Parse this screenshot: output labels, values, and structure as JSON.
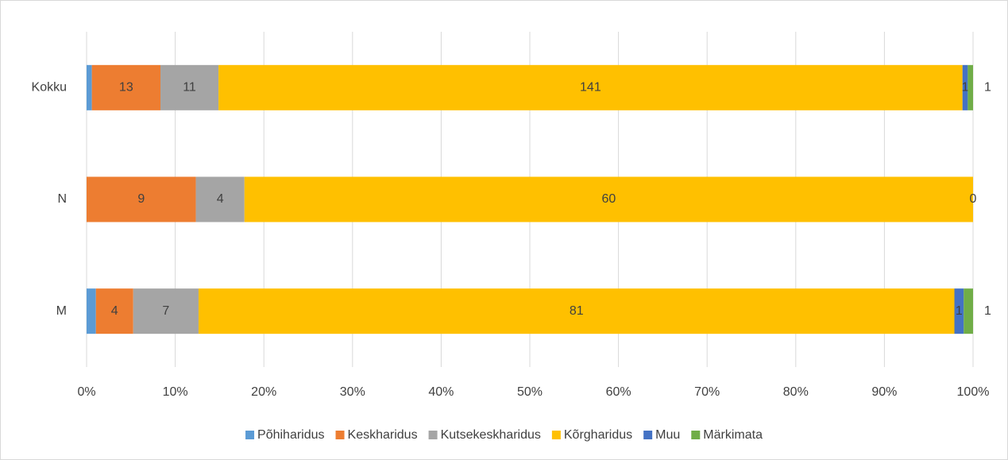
{
  "chart_data": {
    "type": "bar_stacked_100_horizontal",
    "categories": [
      "Kokku",
      "N",
      "M"
    ],
    "series": [
      {
        "name": "Põhiharidus",
        "color": "#5b9bd5",
        "values": [
          1,
          0,
          1
        ],
        "value_labels": [
          null,
          null,
          null
        ]
      },
      {
        "name": "Keskharidus",
        "color": "#ed7d31",
        "values": [
          13,
          9,
          4
        ],
        "value_labels": [
          "13",
          "9",
          "4"
        ]
      },
      {
        "name": "Kutsekeskharidus",
        "color": "#a5a5a5",
        "values": [
          11,
          4,
          7
        ],
        "value_labels": [
          "11",
          "4",
          "7"
        ]
      },
      {
        "name": "Kõrgharidus",
        "color": "#ffc000",
        "values": [
          141,
          60,
          81
        ],
        "value_labels": [
          "141",
          "60",
          "81"
        ]
      },
      {
        "name": "Muu",
        "color": "#4472c4",
        "values": [
          1,
          0,
          1
        ],
        "value_labels": [
          "1",
          "0",
          "1"
        ]
      },
      {
        "name": "Märkimata",
        "color": "#70ad47",
        "values": [
          1,
          0,
          1
        ],
        "value_labels": [
          "1",
          null,
          "1"
        ]
      }
    ],
    "xlim": [
      0,
      100
    ],
    "xticks": [
      {
        "value": 0,
        "label": "0%"
      },
      {
        "value": 10,
        "label": "10%"
      },
      {
        "value": 20,
        "label": "20%"
      },
      {
        "value": 30,
        "label": "30%"
      },
      {
        "value": 40,
        "label": "40%"
      },
      {
        "value": 50,
        "label": "50%"
      },
      {
        "value": 60,
        "label": "60%"
      },
      {
        "value": 70,
        "label": "70%"
      },
      {
        "value": 80,
        "label": "80%"
      },
      {
        "value": 90,
        "label": "90%"
      },
      {
        "value": 100,
        "label": "100%"
      }
    ],
    "grid": true,
    "legend": "bottom"
  }
}
